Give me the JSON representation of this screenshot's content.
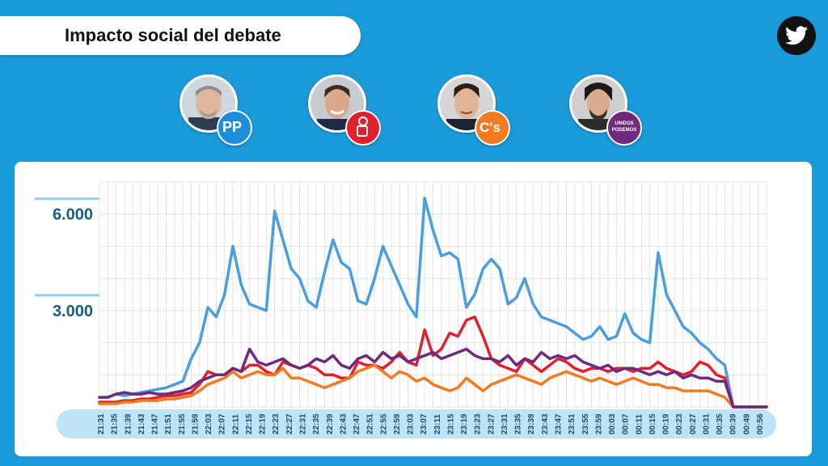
{
  "header": {
    "title": "Impacto social del debate"
  },
  "twitter": {
    "icon": "twitter-bird-icon"
  },
  "candidates": [
    {
      "id": "pp",
      "badge_text": "PP",
      "color": "#1d8fd8"
    },
    {
      "id": "psoe",
      "badge_text": "",
      "color": "#e1202d"
    },
    {
      "id": "cs",
      "badge_text": "C's",
      "color": "#f07b21"
    },
    {
      "id": "podemos",
      "badge_text": "UNIDOS PODEMOS",
      "color": "#6e2a7d"
    }
  ],
  "chart_data": {
    "type": "line",
    "title": "",
    "xlabel": "",
    "ylabel": "",
    "ylim": [
      0,
      7000
    ],
    "y_ticks": [
      3000,
      6000
    ],
    "y_tick_labels": [
      "3.000",
      "6.000"
    ],
    "x_tick_labels": [
      "21:31",
      "21:35",
      "21:39",
      "21:43",
      "21:47",
      "21:51",
      "21:55",
      "21:59",
      "22:03",
      "22:07",
      "22:11",
      "22:15",
      "22:19",
      "22:23",
      "22:27",
      "22:31",
      "22:35",
      "22:39",
      "22:43",
      "22:47",
      "22:51",
      "22:55",
      "22:59",
      "23:03",
      "23:07",
      "23:11",
      "23:15",
      "23:19",
      "23:23",
      "23:27",
      "23:31",
      "23:35",
      "23:39",
      "23:43",
      "23:47",
      "23:51",
      "23:55",
      "23:59",
      "00:03",
      "00:07",
      "00:11",
      "00:15",
      "00:19",
      "00:23",
      "00:27",
      "00:31",
      "00:35",
      "00:39",
      "00:49",
      "00:56"
    ],
    "grid": true,
    "legend": "none",
    "series": [
      {
        "color": "#4a9ee0",
        "values": [
          300,
          300,
          400,
          350,
          400,
          450,
          500,
          550,
          600,
          700,
          800,
          1500,
          2000,
          3100,
          2800,
          3500,
          5000,
          3800,
          3200,
          3100,
          3000,
          6100,
          5200,
          4300,
          4000,
          3300,
          3100,
          4200,
          5200,
          4500,
          4300,
          3300,
          3200,
          4000,
          5000,
          4400,
          3800,
          3200,
          2800,
          6500,
          5500,
          4700,
          4800,
          4600,
          3100,
          3500,
          4300,
          4600,
          4300,
          3200,
          3400,
          4000,
          3200,
          2800,
          2700,
          2600,
          2500,
          2300,
          2100,
          2200,
          2500,
          2100,
          2200,
          2900,
          2300,
          2100,
          2000,
          4800,
          3500,
          3000,
          2500,
          2300,
          2000,
          1800,
          1500,
          1300,
          0,
          0,
          0,
          0,
          0
        ]
      },
      {
        "color": "#e1202d",
        "values": [
          150,
          150,
          150,
          200,
          200,
          250,
          250,
          300,
          350,
          350,
          400,
          450,
          700,
          1100,
          1000,
          1000,
          1200,
          1100,
          1300,
          1300,
          1100,
          1000,
          1400,
          1300,
          1200,
          1300,
          1200,
          1000,
          1000,
          900,
          900,
          1400,
          1300,
          1300,
          1200,
          1400,
          1700,
          1400,
          1300,
          2400,
          1600,
          1800,
          2300,
          2200,
          2700,
          2800,
          2200,
          1500,
          1300,
          1200,
          1100,
          1500,
          1300,
          1100,
          1300,
          1500,
          1400,
          1200,
          1100,
          1200,
          1200,
          1100,
          1200,
          1200,
          1100,
          1200,
          1200,
          1400,
          1200,
          1100,
          1000,
          1100,
          1400,
          1300,
          1000,
          900,
          0,
          0,
          0,
          0,
          0
        ]
      },
      {
        "color": "#f07b21",
        "values": [
          100,
          100,
          100,
          150,
          150,
          200,
          200,
          200,
          250,
          250,
          300,
          350,
          500,
          700,
          800,
          900,
          1100,
          900,
          1000,
          1100,
          1000,
          1000,
          1200,
          900,
          900,
          800,
          700,
          600,
          700,
          800,
          900,
          1100,
          1200,
          1300,
          1100,
          900,
          1100,
          1000,
          800,
          900,
          700,
          600,
          500,
          600,
          900,
          700,
          500,
          700,
          800,
          900,
          1000,
          900,
          800,
          700,
          900,
          1000,
          1100,
          1000,
          900,
          800,
          900,
          800,
          700,
          800,
          900,
          800,
          700,
          700,
          600,
          600,
          500,
          500,
          500,
          500,
          400,
          300,
          0,
          0,
          0,
          0,
          0
        ]
      },
      {
        "color": "#6e2a7d",
        "values": [
          300,
          300,
          400,
          450,
          400,
          400,
          450,
          400,
          400,
          450,
          500,
          600,
          800,
          900,
          1000,
          1000,
          1200,
          1100,
          1800,
          1400,
          1300,
          1400,
          1500,
          1300,
          1200,
          1300,
          1500,
          1400,
          1600,
          1300,
          1200,
          1500,
          1600,
          1400,
          1700,
          1500,
          1600,
          1400,
          1500,
          1600,
          1700,
          1500,
          1600,
          1700,
          1800,
          1600,
          1500,
          1500,
          1400,
          1600,
          1300,
          1500,
          1400,
          1700,
          1500,
          1600,
          1500,
          1600,
          1400,
          1300,
          1200,
          1300,
          1100,
          1200,
          1200,
          1100,
          1000,
          1100,
          1000,
          1100,
          900,
          1000,
          900,
          900,
          800,
          800,
          0,
          0,
          0,
          0,
          0
        ]
      }
    ]
  }
}
